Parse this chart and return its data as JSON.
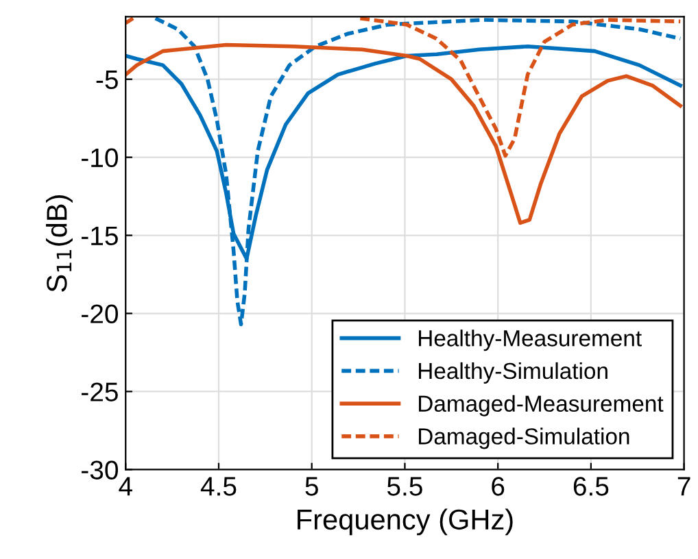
{
  "chart_data": {
    "type": "line",
    "xlabel": "Frequency (GHz)",
    "ylabel": "S$_{11}$(dB)",
    "xlim": [
      4,
      7
    ],
    "ylim": [
      -30,
      -1
    ],
    "xticks": [
      4,
      4.5,
      5,
      5.5,
      6,
      6.5,
      7
    ],
    "yticks": [
      -30,
      -25,
      -20,
      -15,
      -10,
      -5
    ],
    "grid": true,
    "legend": "bottom right",
    "series": [
      {
        "name": "Healthy-Measurement",
        "color": "#0072bd",
        "line_style": "solid",
        "x": [
          4.0,
          4.06,
          4.2,
          4.3,
          4.4,
          4.49,
          4.54,
          4.58,
          4.65,
          4.7,
          4.76,
          4.86,
          4.98,
          5.14,
          5.34,
          5.51,
          5.67,
          5.9,
          6.16,
          6.52,
          6.76,
          6.98
        ],
        "values": [
          -3.5,
          -3.7,
          -4.1,
          -5.3,
          -7.3,
          -9.6,
          -12.3,
          -14.9,
          -16.5,
          -13.7,
          -10.8,
          -7.9,
          -5.9,
          -4.7,
          -4.0,
          -3.5,
          -3.4,
          -3.1,
          -2.9,
          -3.2,
          -4.1,
          -5.4
        ]
      },
      {
        "name": "Healthy-Simulation",
        "color": "#0072bd",
        "line_style": "dashed",
        "x": [
          4.16,
          4.28,
          4.37,
          4.44,
          4.49,
          4.54,
          4.58,
          4.6,
          4.62,
          4.64,
          4.66,
          4.71,
          4.78,
          4.88,
          5.02,
          5.19,
          5.41,
          5.92,
          6.4,
          6.76,
          6.98
        ],
        "values": [
          -1.1,
          -1.8,
          -2.9,
          -5.0,
          -7.6,
          -11.1,
          -16.0,
          -19.2,
          -20.7,
          -18.7,
          -14.6,
          -9.6,
          -6.1,
          -4.1,
          -2.9,
          -2.1,
          -1.5,
          -1.2,
          -1.3,
          -1.8,
          -2.4
        ]
      },
      {
        "name": "Damaged-Measurement",
        "color": "#d95319",
        "line_style": "solid",
        "x": [
          4.0,
          4.06,
          4.2,
          4.54,
          4.9,
          5.27,
          5.51,
          5.58,
          5.75,
          5.87,
          5.99,
          6.07,
          6.12,
          6.17,
          6.23,
          6.33,
          6.45,
          6.59,
          6.69,
          6.83,
          6.98
        ],
        "values": [
          -4.7,
          -4.1,
          -3.2,
          -2.8,
          -2.9,
          -3.1,
          -3.5,
          -3.7,
          -5.0,
          -6.7,
          -9.3,
          -12.3,
          -14.2,
          -14.0,
          -11.7,
          -8.5,
          -6.1,
          -5.1,
          -4.8,
          -5.4,
          -6.7
        ]
      },
      {
        "name": "Damaged-Simulation",
        "color": "#d95319",
        "line_style": "dashed",
        "x": [
          4.0,
          4.04,
          4.06,
          5.26,
          5.51,
          5.67,
          5.8,
          5.89,
          5.99,
          6.04,
          6.09,
          6.16,
          6.25,
          6.4,
          6.59,
          6.98
        ],
        "values": [
          -1.4,
          -1.1,
          null,
          -1.1,
          -1.5,
          -2.4,
          -3.8,
          -5.9,
          -8.2,
          -9.9,
          -8.8,
          -4.7,
          -2.6,
          -1.5,
          -1.2,
          -1.3
        ]
      }
    ]
  }
}
